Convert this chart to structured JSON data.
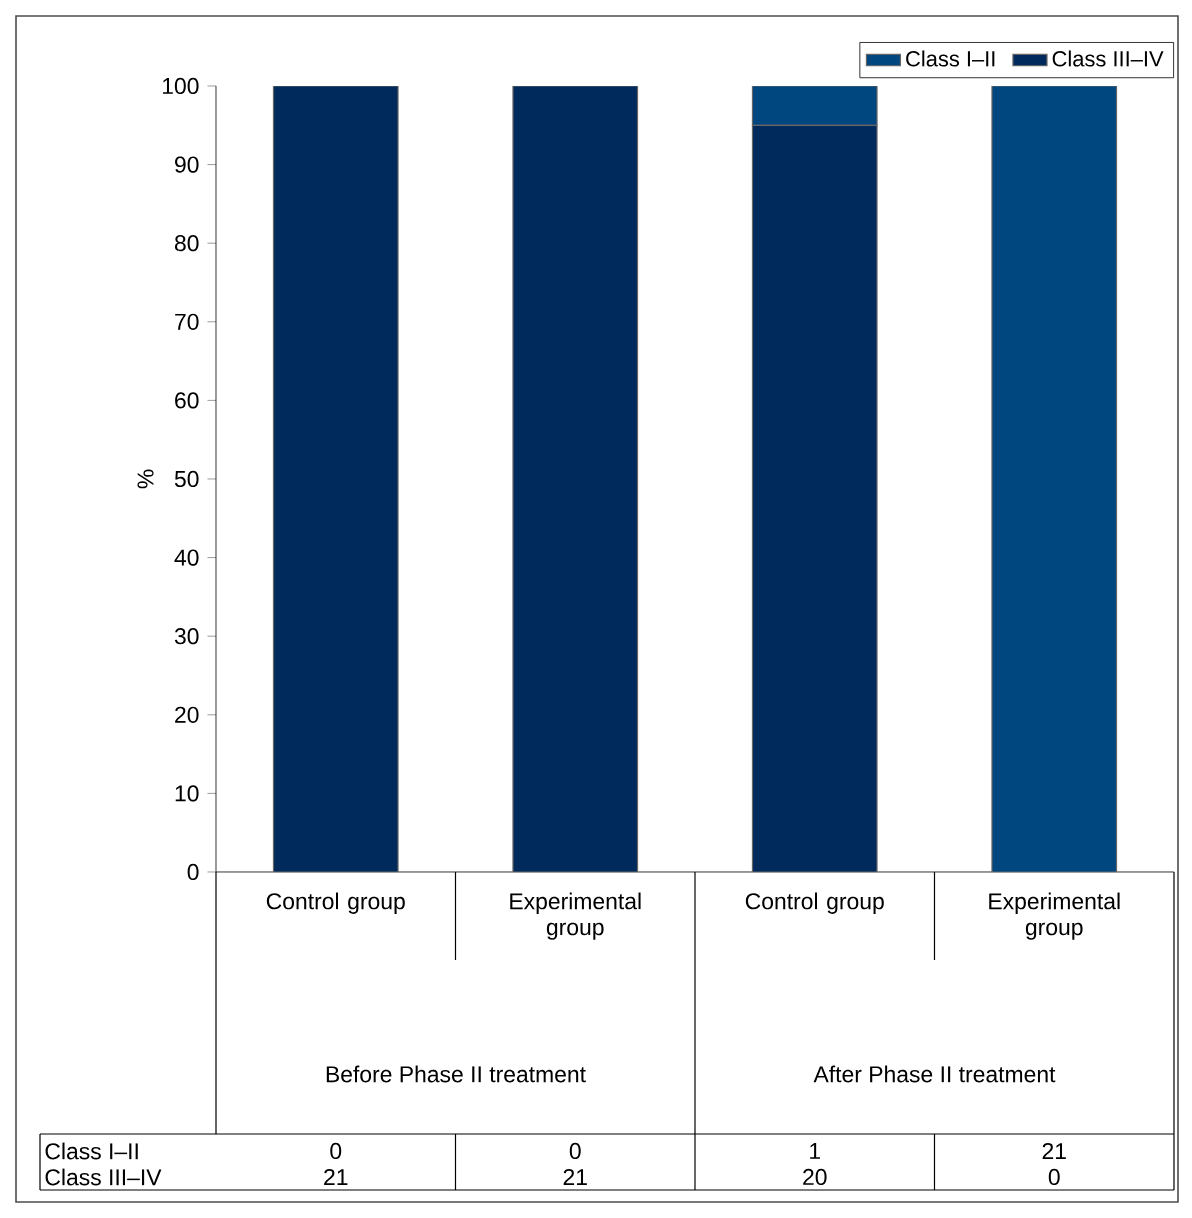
{
  "chart_data": {
    "type": "bar",
    "stacked": true,
    "ylabel": "%",
    "categories": [
      "Control group",
      "Experimental group",
      "Control group",
      "Experimental group"
    ],
    "series": [
      {
        "name": "Class III–IV",
        "color": "#002a5c",
        "values": [
          100,
          100,
          95,
          0
        ]
      },
      {
        "name": "Class I–II",
        "color": "#00467f",
        "values": [
          0,
          0,
          5,
          100
        ]
      }
    ],
    "annotations": [
      "Before Phase II treatment",
      "After Phase II treatment",
      "0",
      "0",
      "1",
      "21",
      "21",
      "21",
      "20",
      "0"
    ],
    "ylim": [
      0,
      100
    ],
    "yticks": [
      0,
      10,
      20,
      30,
      40,
      50,
      60,
      70,
      80,
      90,
      100
    ],
    "legend": "top right"
  }
}
